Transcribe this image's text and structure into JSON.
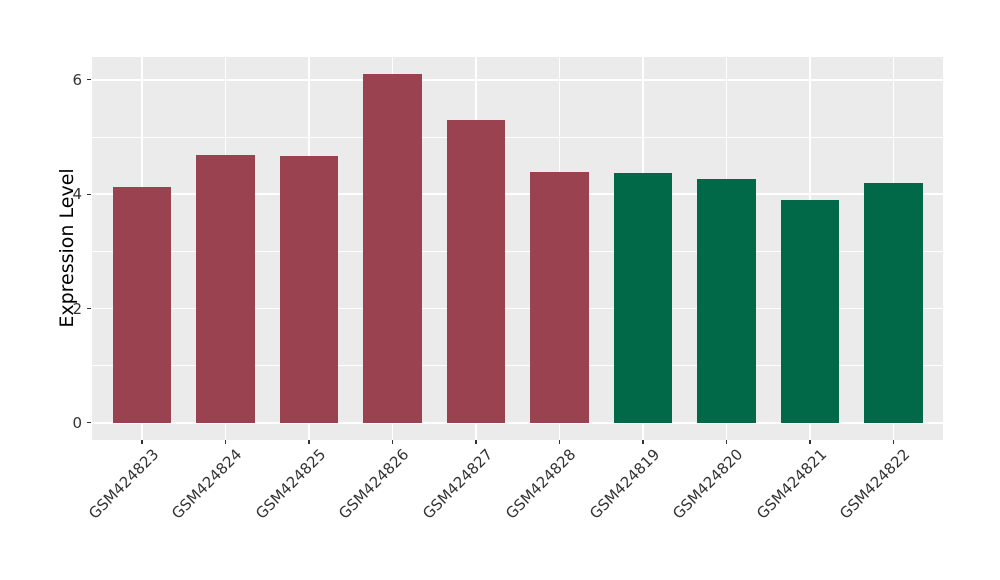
{
  "chart_data": {
    "type": "bar",
    "title": "",
    "ylabel": "Expression Level",
    "categories": [
      "GSM424823",
      "GSM424824",
      "GSM424825",
      "GSM424826",
      "GSM424827",
      "GSM424828",
      "GSM424819",
      "GSM424820",
      "GSM424821",
      "GSM424822"
    ],
    "values": [
      4.13,
      4.68,
      4.67,
      6.1,
      5.3,
      4.39,
      4.37,
      4.26,
      3.89,
      4.2
    ],
    "bar_colors": [
      "#9B4251",
      "#9B4251",
      "#9B4251",
      "#9B4251",
      "#9B4251",
      "#9B4251",
      "#016848",
      "#016848",
      "#016848",
      "#016848"
    ],
    "groups": [
      {
        "name": "maroon-group",
        "color": "#9B4251",
        "categories": [
          "GSM424823",
          "GSM424824",
          "GSM424825",
          "GSM424826",
          "GSM424827",
          "GSM424828"
        ]
      },
      {
        "name": "green-group",
        "color": "#016848",
        "categories": [
          "GSM424819",
          "GSM424820",
          "GSM424821",
          "GSM424822"
        ]
      }
    ],
    "yticks": [
      0,
      2,
      4,
      6
    ],
    "yticks_minor": [
      1,
      3,
      5
    ],
    "ylim": [
      -0.3,
      6.4
    ],
    "xlabel_rotation_deg": 45,
    "legend": "none",
    "grid": "on",
    "panel_background": "#EBEBEB",
    "grid_color": "#FFFFFF",
    "figure_background": "#FFFFFF"
  }
}
